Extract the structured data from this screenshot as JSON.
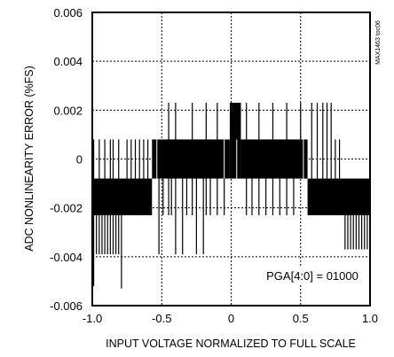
{
  "chart_data": {
    "type": "line",
    "title": "",
    "xlabel": "INPUT VOLTAGE NORMALIZED TO FULL SCALE",
    "ylabel": "ADC NONLINEARITY ERROR (%FS)",
    "xlim": [
      -1.0,
      1.0
    ],
    "ylim": [
      -0.006,
      0.006
    ],
    "x_ticks": [
      -1.0,
      -0.5,
      0,
      0.5,
      1.0
    ],
    "x_tick_labels": [
      "-1.0",
      "-0.5",
      "0",
      "0.5",
      "1.0"
    ],
    "y_ticks": [
      -0.006,
      -0.004,
      -0.002,
      0,
      0.002,
      0.004,
      0.006
    ],
    "y_tick_labels": [
      "-0.006",
      "-0.004",
      "-0.002",
      "0",
      "0.002",
      "0.004",
      "0.006"
    ],
    "grid": true,
    "grid_style": "dotted",
    "annotation": "PGA[4:0] = 01000",
    "figure_id": "MAX1463 toc06",
    "series": [
      {
        "values_description": "quantized error levels",
        "bands": [
          {
            "x": [
              -1.0,
              -0.57
            ],
            "y": [
              -0.0023,
              -0.0008
            ]
          },
          {
            "x": [
              -0.57,
              -0.01
            ],
            "y": [
              -0.0008,
              0.0008
            ]
          },
          {
            "x": [
              -0.01,
              0.07
            ],
            "y": [
              -0.0008,
              0.0023
            ]
          },
          {
            "x": [
              0.07,
              0.55
            ],
            "y": [
              -0.0008,
              0.0008
            ]
          },
          {
            "x": [
              0.55,
              1.0
            ],
            "y": [
              -0.0023,
              -0.0008
            ]
          }
        ],
        "spikes": [
          {
            "x": -0.99,
            "y": [
              -0.0052,
              0.0008
            ]
          },
          {
            "x": -0.97,
            "y": [
              -0.0039,
              -0.0008
            ]
          },
          {
            "x": -0.95,
            "y": [
              -0.0039,
              0.0008
            ]
          },
          {
            "x": -0.93,
            "y": [
              -0.0039,
              -0.0008
            ]
          },
          {
            "x": -0.91,
            "y": [
              -0.0039,
              0.0008
            ]
          },
          {
            "x": -0.89,
            "y": [
              -0.0039,
              -0.0008
            ]
          },
          {
            "x": -0.87,
            "y": [
              -0.0039,
              0.0008
            ]
          },
          {
            "x": -0.85,
            "y": [
              -0.0039,
              0.0008
            ]
          },
          {
            "x": -0.83,
            "y": [
              -0.0039,
              -0.0008
            ]
          },
          {
            "x": -0.81,
            "y": [
              -0.0039,
              0.0008
            ]
          },
          {
            "x": -0.79,
            "y": [
              -0.0053,
              -0.0023
            ]
          },
          {
            "x": -0.75,
            "y": [
              -0.0023,
              0.0008
            ]
          },
          {
            "x": -0.72,
            "y": [
              -0.0023,
              0.0008
            ]
          },
          {
            "x": -0.69,
            "y": [
              -0.0023,
              0.0008
            ]
          },
          {
            "x": -0.66,
            "y": [
              -0.0023,
              0.0008
            ]
          },
          {
            "x": -0.63,
            "y": [
              -0.0023,
              0.0008
            ]
          },
          {
            "x": -0.6,
            "y": [
              -0.0023,
              0.0008
            ]
          },
          {
            "x": -0.52,
            "y": [
              -0.0039,
              -0.0008
            ]
          },
          {
            "x": -0.49,
            "y": [
              -0.0023,
              -0.0008
            ]
          },
          {
            "x": -0.45,
            "y": [
              -0.0023,
              0.0023
            ]
          },
          {
            "x": -0.43,
            "y": [
              -0.0023,
              -0.0008
            ]
          },
          {
            "x": -0.4,
            "y": [
              -0.0039,
              0.0023
            ]
          },
          {
            "x": -0.35,
            "y": [
              -0.0039,
              -0.0008
            ]
          },
          {
            "x": -0.32,
            "y": [
              -0.0023,
              -0.0008
            ]
          },
          {
            "x": -0.28,
            "y": [
              -0.0023,
              0.0023
            ]
          },
          {
            "x": -0.25,
            "y": [
              -0.0039,
              -0.0008
            ]
          },
          {
            "x": -0.2,
            "y": [
              -0.0039,
              -0.0008
            ]
          },
          {
            "x": -0.18,
            "y": [
              -0.0023,
              0.0023
            ]
          },
          {
            "x": -0.15,
            "y": [
              -0.0023,
              -0.0008
            ]
          },
          {
            "x": -0.1,
            "y": [
              -0.0023,
              0.0023
            ]
          },
          {
            "x": -0.05,
            "y": [
              -0.0023,
              -0.0008
            ]
          },
          {
            "x": 0.11,
            "y": [
              -0.0023,
              0.0023
            ]
          },
          {
            "x": 0.15,
            "y": [
              -0.0023,
              -0.0008
            ]
          },
          {
            "x": 0.2,
            "y": [
              -0.0023,
              0.0023
            ]
          },
          {
            "x": 0.25,
            "y": [
              -0.0023,
              -0.0008
            ]
          },
          {
            "x": 0.3,
            "y": [
              -0.0023,
              0.0023
            ]
          },
          {
            "x": 0.35,
            "y": [
              -0.0023,
              -0.0008
            ]
          },
          {
            "x": 0.4,
            "y": [
              -0.0023,
              0.0023
            ]
          },
          {
            "x": 0.45,
            "y": [
              -0.0023,
              0.0008
            ]
          },
          {
            "x": 0.5,
            "y": [
              -0.0008,
              0.0023
            ]
          },
          {
            "x": 0.58,
            "y": [
              -0.0008,
              0.0023
            ]
          },
          {
            "x": 0.62,
            "y": [
              -0.0008,
              0.0023
            ]
          },
          {
            "x": 0.66,
            "y": [
              -0.0008,
              0.0023
            ]
          },
          {
            "x": 0.69,
            "y": [
              -0.0008,
              0.0023
            ]
          },
          {
            "x": 0.72,
            "y": [
              -0.0008,
              0.0023
            ]
          },
          {
            "x": 0.75,
            "y": [
              -0.0008,
              0.0008
            ]
          },
          {
            "x": 0.78,
            "y": [
              -0.0008,
              0.0008
            ]
          },
          {
            "x": 0.82,
            "y": [
              -0.0037,
              -0.0008
            ]
          },
          {
            "x": 0.84,
            "y": [
              -0.0037,
              -0.0008
            ]
          },
          {
            "x": 0.86,
            "y": [
              -0.0037,
              -0.0008
            ]
          },
          {
            "x": 0.88,
            "y": [
              -0.0037,
              -0.0008
            ]
          },
          {
            "x": 0.9,
            "y": [
              -0.0037,
              -0.0008
            ]
          },
          {
            "x": 0.92,
            "y": [
              -0.0037,
              -0.0008
            ]
          },
          {
            "x": 0.94,
            "y": [
              -0.0037,
              -0.0008
            ]
          },
          {
            "x": 0.96,
            "y": [
              -0.0037,
              -0.0008
            ]
          },
          {
            "x": 0.98,
            "y": [
              -0.0037,
              -0.0008
            ]
          }
        ]
      }
    ]
  }
}
